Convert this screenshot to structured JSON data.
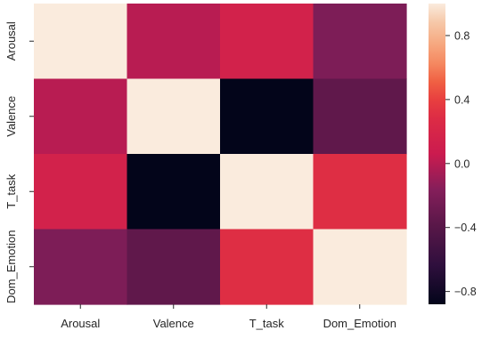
{
  "chart_data": {
    "type": "heatmap",
    "title": "",
    "xlabel": "",
    "ylabel": "",
    "x_categories": [
      "Arousal",
      "Valence",
      "T_task",
      "Dom_Emotion"
    ],
    "y_categories": [
      "Arousal",
      "Valence",
      "T_task",
      "Dom_Emotion"
    ],
    "values": [
      [
        1.0,
        0.0,
        0.15,
        -0.2
      ],
      [
        0.0,
        1.0,
        -0.88,
        -0.35
      ],
      [
        0.15,
        -0.88,
        1.0,
        0.3
      ],
      [
        -0.2,
        -0.35,
        0.3,
        1.0
      ]
    ],
    "colorbar": {
      "vmin": -0.88,
      "vmax": 1.0,
      "ticks": [
        0.8,
        0.4,
        0.0,
        -0.4,
        -0.8
      ],
      "tick_labels": [
        "0.8",
        "0.4",
        "0.0",
        "−0.4",
        "−0.8"
      ]
    },
    "colormap_stops": [
      {
        "t": 0.0,
        "color": "#03051a"
      },
      {
        "t": 0.13,
        "color": "#2f0f3d"
      },
      {
        "t": 0.26,
        "color": "#581748"
      },
      {
        "t": 0.38,
        "color": "#841e5a"
      },
      {
        "t": 0.5,
        "color": "#cb1b4f"
      },
      {
        "t": 0.62,
        "color": "#dd2c45"
      },
      {
        "t": 0.68,
        "color": "#e83f3f"
      },
      {
        "t": 0.74,
        "color": "#f06043"
      },
      {
        "t": 0.8,
        "color": "#f58860"
      },
      {
        "t": 0.87,
        "color": "#f6aa82"
      },
      {
        "t": 0.94,
        "color": "#f6c9aa"
      },
      {
        "t": 1.0,
        "color": "#faebdd"
      }
    ],
    "grid": false,
    "legend": "colorbar-right"
  }
}
